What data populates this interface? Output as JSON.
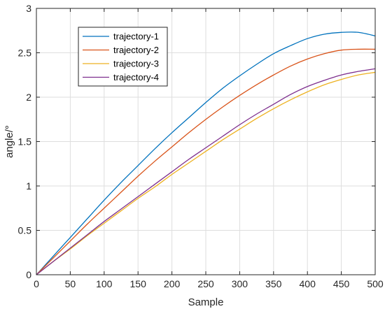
{
  "chart_data": {
    "type": "line",
    "title": "",
    "xlabel": "Sample",
    "ylabel": "angle/°",
    "xlim": [
      0,
      500
    ],
    "ylim": [
      0,
      3
    ],
    "xticks": [
      0,
      50,
      100,
      150,
      200,
      250,
      300,
      350,
      400,
      450,
      500
    ],
    "yticks": [
      0,
      0.5,
      1,
      1.5,
      2,
      2.5,
      3
    ],
    "grid": true,
    "legend": "top-left",
    "x": [
      0,
      25,
      50,
      75,
      100,
      125,
      150,
      175,
      200,
      225,
      250,
      275,
      300,
      325,
      350,
      375,
      400,
      425,
      450,
      475,
      500
    ],
    "series": [
      {
        "name": "trajectory-1",
        "color": "#0072BD",
        "values": [
          0,
          0.21,
          0.42,
          0.63,
          0.84,
          1.04,
          1.23,
          1.42,
          1.6,
          1.77,
          1.94,
          2.1,
          2.24,
          2.37,
          2.49,
          2.58,
          2.66,
          2.71,
          2.73,
          2.73,
          2.69
        ]
      },
      {
        "name": "trajectory-2",
        "color": "#D95319",
        "values": [
          0,
          0.19,
          0.38,
          0.57,
          0.75,
          0.93,
          1.11,
          1.28,
          1.44,
          1.6,
          1.75,
          1.89,
          2.02,
          2.14,
          2.25,
          2.35,
          2.43,
          2.49,
          2.53,
          2.54,
          2.54
        ]
      },
      {
        "name": "trajectory-3",
        "color": "#EDB120",
        "values": [
          0,
          0.15,
          0.29,
          0.44,
          0.58,
          0.72,
          0.86,
          0.99,
          1.13,
          1.26,
          1.39,
          1.52,
          1.64,
          1.76,
          1.87,
          1.97,
          2.06,
          2.14,
          2.2,
          2.25,
          2.28
        ]
      },
      {
        "name": "trajectory-4",
        "color": "#7E2F8E",
        "values": [
          0,
          0.15,
          0.3,
          0.45,
          0.6,
          0.74,
          0.88,
          1.02,
          1.16,
          1.3,
          1.43,
          1.56,
          1.69,
          1.81,
          1.92,
          2.03,
          2.12,
          2.19,
          2.25,
          2.29,
          2.32
        ]
      }
    ]
  }
}
